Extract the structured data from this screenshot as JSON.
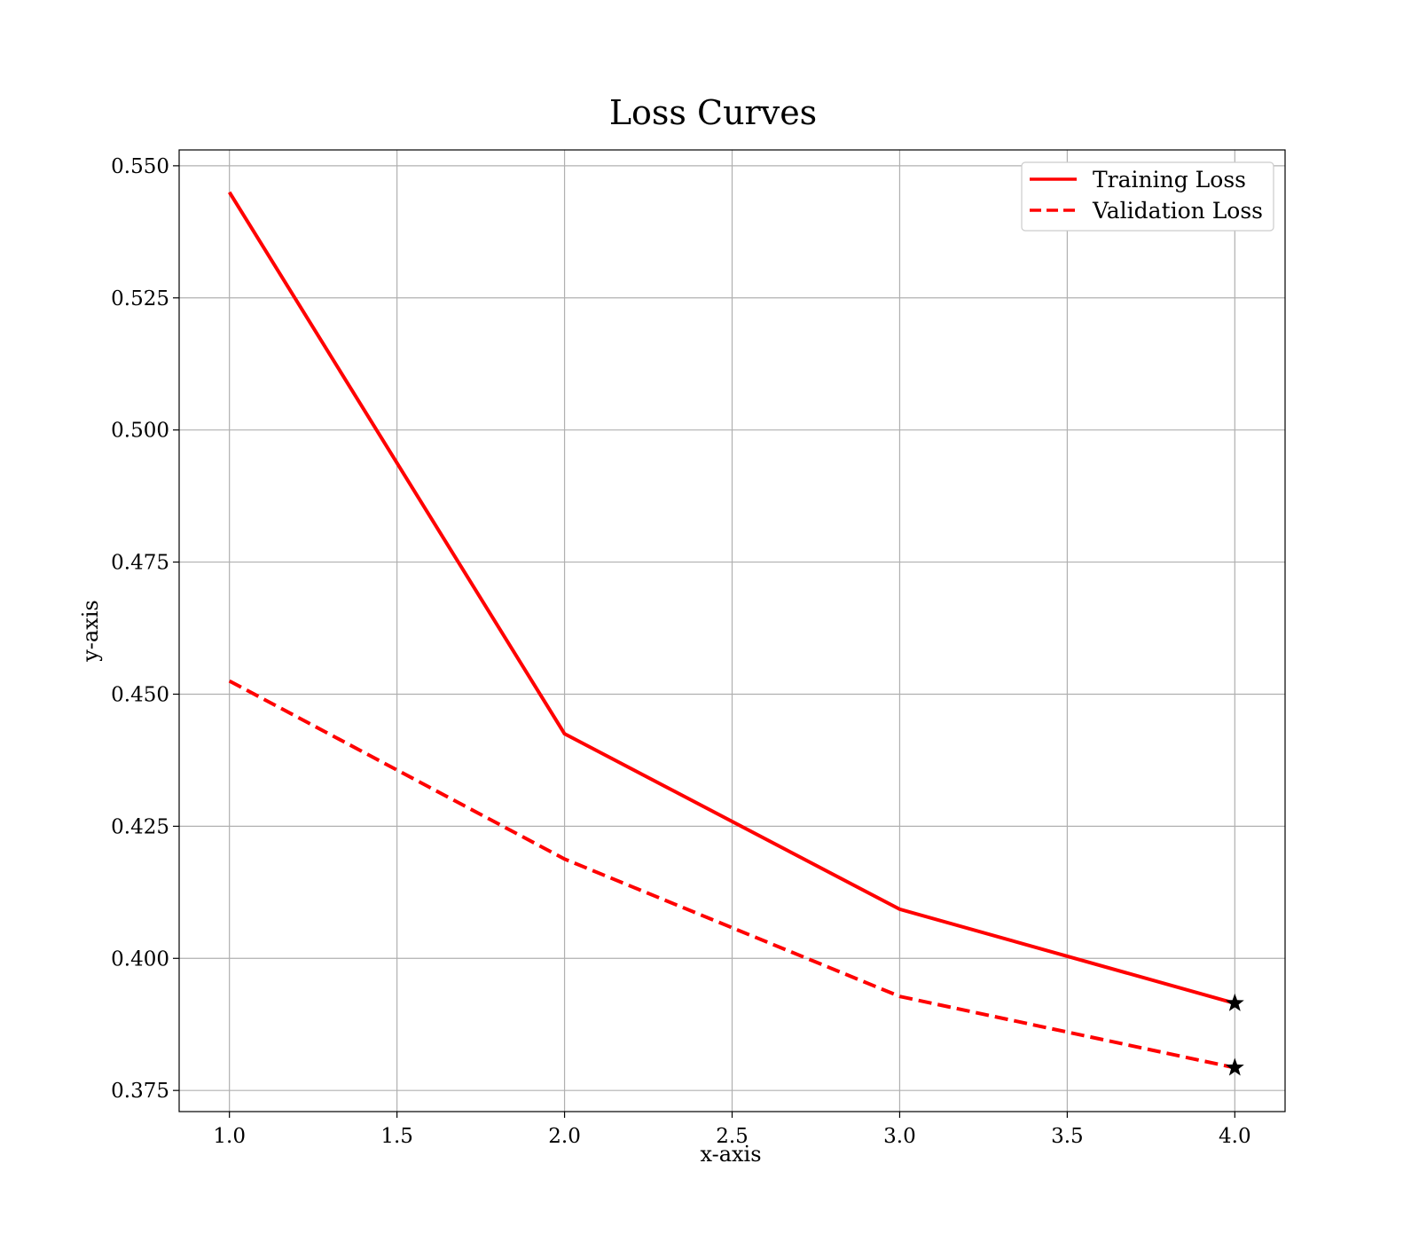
{
  "chart_data": {
    "type": "line",
    "title": "Loss Curves",
    "xlabel": "x-axis",
    "ylabel": "y-axis",
    "xlim": [
      0.85,
      4.15
    ],
    "ylim": [
      0.371,
      0.553
    ],
    "x_ticks": [
      1.0,
      1.5,
      2.0,
      2.5,
      3.0,
      3.5,
      4.0
    ],
    "x_tick_labels": [
      "1.0",
      "1.5",
      "2.0",
      "2.5",
      "3.0",
      "3.5",
      "4.0"
    ],
    "y_ticks": [
      0.375,
      0.4,
      0.425,
      0.45,
      0.475,
      0.5,
      0.525,
      0.55
    ],
    "y_tick_labels": [
      "0.375",
      "0.400",
      "0.425",
      "0.450",
      "0.475",
      "0.500",
      "0.525",
      "0.550"
    ],
    "grid": true,
    "legend_position": "top-right",
    "x": [
      1,
      2,
      3,
      4
    ],
    "series": [
      {
        "name": "Training Loss",
        "values": [
          0.545,
          0.4425,
          0.4093,
          0.3915
        ],
        "color": "#ff0000",
        "line_style": "solid",
        "end_marker": "star"
      },
      {
        "name": "Validation Loss",
        "values": [
          0.4525,
          0.4188,
          0.3928,
          0.3793
        ],
        "color": "#ff0000",
        "line_style": "dashed",
        "end_marker": "star"
      }
    ],
    "grid_color": "#b0b0b0",
    "marker_color": "#000000"
  }
}
